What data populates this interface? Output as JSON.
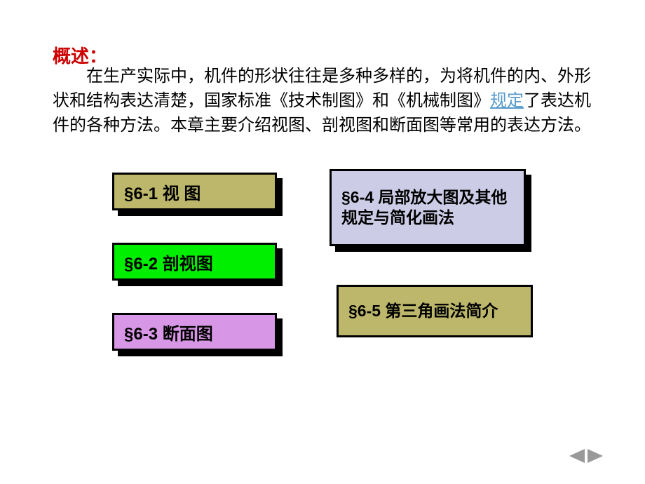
{
  "overview": {
    "title": "概述：",
    "body_part1": "在生产实际中，机件的形状往往是多种多样的，为将机件的内、外形状和结构表达清楚，国家标准《技术制图》和《机械制图》",
    "link_text": "规定",
    "body_part2": "了表达机件的各种方法。本章主要介绍视图、剖视图和断面图等常用的表达方法。"
  },
  "buttons": {
    "btn1": "§6-1 视 图",
    "btn2": "§6-2 剖视图",
    "btn3": "§6-3 断面图",
    "btn4": "§6-4 局部放大图及其他规定与简化画法",
    "btn5": "§6-5 第三角画法简介"
  },
  "colors": {
    "title_color": "#cc0000",
    "link_color": "#5599cc",
    "btn1_bg": "#bdb76b",
    "btn2_bg": "#00ee00",
    "btn3_bg": "#d896e6",
    "btn4_bg": "#cccce6",
    "btn5_bg": "#bdb76b",
    "shadow": "#000000",
    "arrow_color": "#999999"
  }
}
